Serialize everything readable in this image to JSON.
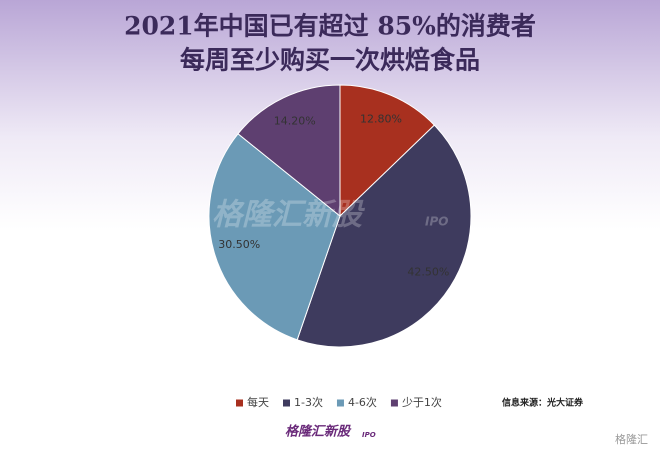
{
  "chart_data": {
    "type": "pie",
    "title_lines": [
      "2021年中国已有超过 85%的消费者",
      "每周至少购买一次烘焙食品"
    ],
    "categories": [
      "每天",
      "1-3次",
      "4-6次",
      "少于1次"
    ],
    "values": [
      12.8,
      42.5,
      30.5,
      14.2
    ],
    "value_labels": [
      "12.80%",
      "42.50%",
      "30.50%",
      "14.20%"
    ],
    "colors": [
      "#a8301f",
      "#3e3b5e",
      "#6b9ab6",
      "#5e3f70"
    ],
    "legend": "bottom",
    "source": "信息来源：光大证券",
    "watermark": "格隆汇新股",
    "watermark_sub": "IPO",
    "corner_mark": "格隆汇"
  }
}
